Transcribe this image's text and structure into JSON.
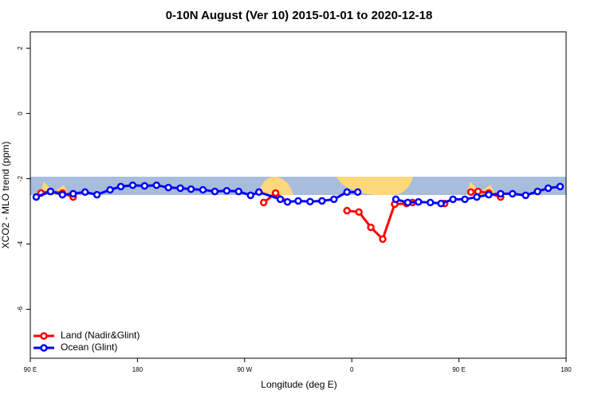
{
  "chart_data": {
    "type": "line",
    "title": "0-10N August (Ver 10)   2015-01-01 to 2020-12-18",
    "x_label": "Longitude (deg E)",
    "y_label": "XCO2 - MLO trend (ppm)",
    "xlim": [
      90,
      540
    ],
    "xticks": [
      {
        "value": 90,
        "label": "90 E"
      },
      180,
      {
        "value": 270,
        "label": "90 W"
      },
      {
        "value": 360,
        "label": "0"
      },
      {
        "value": 450,
        "label": "90 E"
      },
      {
        "value": 540,
        "label": "180"
      }
    ],
    "ylim": [
      -7.5,
      2.5
    ],
    "yticks": [
      -6,
      -4,
      -2,
      0,
      2
    ],
    "legend": "bottom-left",
    "series": [
      {
        "name": "Land (Nadir&Glint)",
        "color": "#ff0000",
        "x": [
          99,
          107,
          117,
          126,
          null,
          286,
          296,
          306,
          null,
          356,
          366,
          376,
          386,
          396,
          406,
          411,
          null,
          438,
          null,
          460,
          466,
          475,
          485
        ],
        "values": [
          -2.44,
          -2.39,
          -2.44,
          -2.56,
          null,
          -2.73,
          -2.44,
          -2.71,
          null,
          -2.98,
          -3.02,
          -3.49,
          -3.85,
          -2.78,
          -2.76,
          -2.73,
          null,
          -2.76,
          null,
          -2.41,
          -2.39,
          -2.44,
          -2.56
        ]
      },
      {
        "name": "Ocean (Glint)",
        "color": "#0000ff",
        "x": [
          95,
          107,
          117,
          126,
          136,
          146,
          157,
          166,
          176,
          186,
          196,
          206,
          216,
          225,
          235,
          245,
          255,
          265,
          275,
          282,
          300,
          306,
          315,
          325,
          335,
          345,
          356,
          365,
          null,
          397,
          407,
          416,
          426,
          435,
          445,
          455,
          465,
          475,
          485,
          495,
          506,
          516,
          525,
          535
        ],
        "values": [
          -2.56,
          -2.39,
          -2.49,
          -2.46,
          -2.41,
          -2.49,
          -2.34,
          -2.24,
          -2.2,
          -2.22,
          -2.2,
          -2.27,
          -2.29,
          -2.32,
          -2.34,
          -2.39,
          -2.37,
          -2.39,
          -2.51,
          -2.41,
          -2.63,
          -2.71,
          -2.68,
          -2.7,
          -2.68,
          -2.63,
          -2.41,
          -2.41,
          null,
          -2.63,
          -2.73,
          -2.71,
          -2.73,
          -2.76,
          -2.63,
          -2.63,
          -2.56,
          -2.49,
          -2.46,
          -2.46,
          -2.51,
          -2.39,
          -2.29,
          -2.24
        ]
      }
    ]
  }
}
